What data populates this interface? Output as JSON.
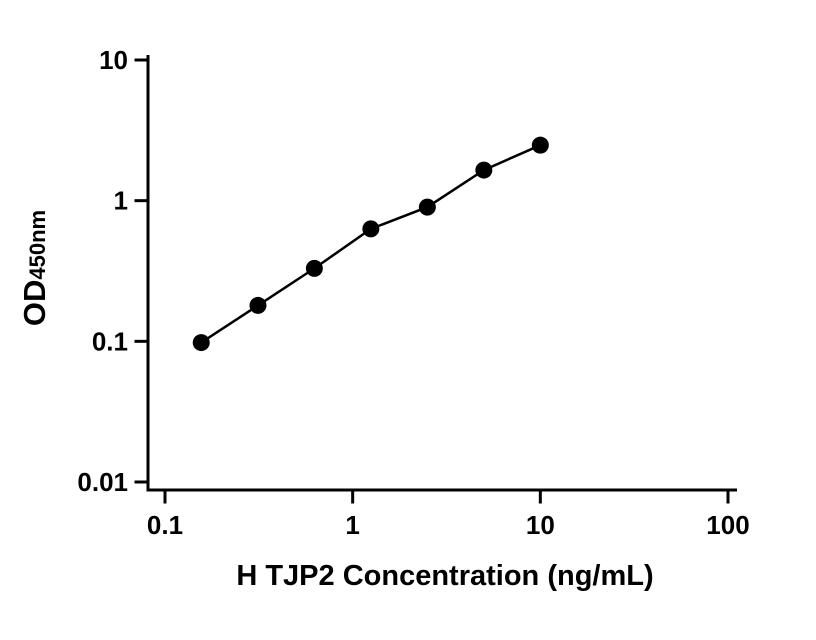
{
  "colors": {
    "axis": "#000000",
    "line": "#000000",
    "marker": "#000000",
    "background": "#ffffff"
  },
  "chart_data": {
    "type": "scatter",
    "title": "",
    "xlabel": "H TJP2 Concentration (ng/mL)",
    "ylabel": "OD450nm",
    "ylabel_main": "OD",
    "ylabel_sub": "450nm",
    "xscale": "log",
    "yscale": "log",
    "xlim": [
      0.1,
      100
    ],
    "ylim": [
      0.01,
      10
    ],
    "x_ticks": [
      0.1,
      1,
      10,
      100
    ],
    "x_tick_labels": [
      "0.1",
      "1",
      "10",
      "100"
    ],
    "y_ticks": [
      0.01,
      0.1,
      1,
      10
    ],
    "y_tick_labels": [
      "0.01",
      "0.1",
      "1",
      "10"
    ],
    "grid": false,
    "legend": false,
    "marker": "circle",
    "line_connects_points": true,
    "x": [
      0.156,
      0.313,
      0.625,
      1.25,
      2.5,
      5,
      10
    ],
    "y": [
      0.098,
      0.18,
      0.33,
      0.63,
      0.9,
      1.65,
      2.48
    ]
  }
}
